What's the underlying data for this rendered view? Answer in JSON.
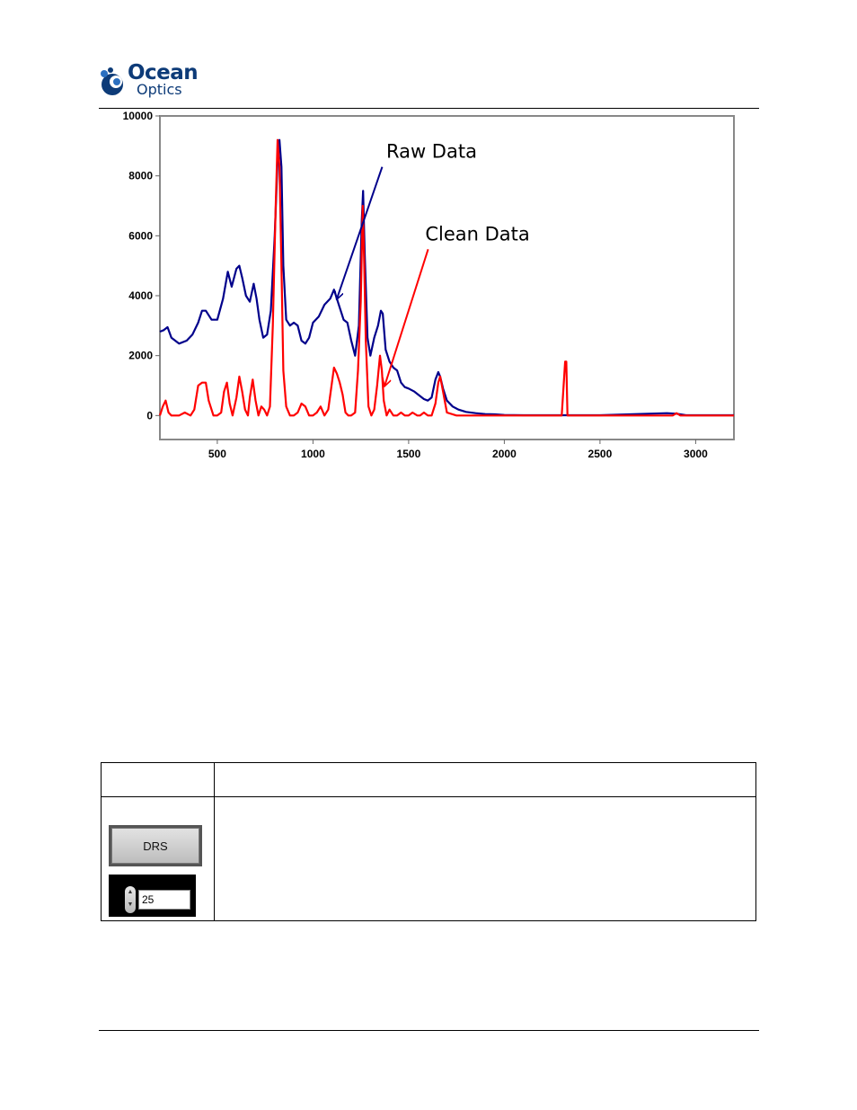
{
  "header": {
    "logo_word1": "Ocean",
    "logo_word2": "Optics",
    "brand_color": "#0d3b78",
    "logo_accent": "#2a6fc0"
  },
  "chart_data": {
    "type": "line",
    "xlim": [
      200,
      3200
    ],
    "ylim": [
      -800,
      10000
    ],
    "x_ticks": [
      "500",
      "1000",
      "1500",
      "2000",
      "2500",
      "3000"
    ],
    "y_ticks": [
      "0",
      "2000",
      "4000",
      "6000",
      "8000",
      "10000"
    ],
    "grid": false,
    "series": [
      {
        "color": "#00008b",
        "x": [
          200,
          220,
          240,
          260,
          300,
          340,
          370,
          400,
          420,
          440,
          470,
          500,
          530,
          555,
          575,
          600,
          615,
          630,
          650,
          670,
          690,
          705,
          720,
          740,
          760,
          780,
          800,
          815,
          825,
          835,
          845,
          860,
          880,
          900,
          920,
          940,
          960,
          980,
          1000,
          1030,
          1060,
          1090,
          1110,
          1125,
          1140,
          1160,
          1180,
          1200,
          1220,
          1240,
          1255,
          1262,
          1270,
          1285,
          1300,
          1320,
          1340,
          1355,
          1365,
          1380,
          1400,
          1420,
          1440,
          1460,
          1480,
          1500,
          1530,
          1560,
          1580,
          1600,
          1620,
          1640,
          1655,
          1665,
          1680,
          1700,
          1730,
          1760,
          1800,
          1850,
          1900,
          1950,
          2000,
          2100,
          2300,
          2500,
          2850,
          2900,
          2950,
          3000,
          3200
        ],
        "values": [
          2800,
          2850,
          2950,
          2600,
          2400,
          2500,
          2700,
          3100,
          3500,
          3500,
          3200,
          3200,
          3900,
          4800,
          4300,
          4900,
          5000,
          4600,
          4000,
          3800,
          4400,
          3900,
          3200,
          2600,
          2700,
          3500,
          6000,
          8500,
          9200,
          8300,
          5000,
          3200,
          3000,
          3100,
          3000,
          2500,
          2400,
          2600,
          3100,
          3300,
          3700,
          3900,
          4200,
          3900,
          3600,
          3200,
          3100,
          2500,
          2000,
          3000,
          6500,
          7500,
          5500,
          2600,
          2000,
          2600,
          3000,
          3500,
          3400,
          2200,
          1800,
          1600,
          1500,
          1100,
          950,
          900,
          800,
          650,
          550,
          500,
          600,
          1200,
          1450,
          1300,
          900,
          500,
          300,
          200,
          120,
          80,
          50,
          40,
          20,
          10,
          10,
          10,
          80,
          60,
          10,
          10,
          10
        ]
      },
      {
        "color": "#ff0000",
        "x": [
          200,
          215,
          230,
          245,
          260,
          300,
          330,
          360,
          380,
          400,
          420,
          440,
          455,
          465,
          480,
          500,
          520,
          535,
          550,
          565,
          580,
          600,
          615,
          630,
          645,
          660,
          670,
          685,
          700,
          715,
          730,
          745,
          760,
          775,
          790,
          805,
          815,
          825,
          835,
          845,
          860,
          880,
          900,
          920,
          940,
          960,
          980,
          1000,
          1020,
          1040,
          1060,
          1080,
          1095,
          1110,
          1125,
          1140,
          1155,
          1170,
          1185,
          1200,
          1220,
          1235,
          1250,
          1260,
          1268,
          1276,
          1290,
          1305,
          1320,
          1335,
          1350,
          1360,
          1370,
          1385,
          1400,
          1420,
          1440,
          1460,
          1480,
          1500,
          1520,
          1545,
          1560,
          1580,
          1600,
          1620,
          1640,
          1655,
          1665,
          1680,
          1700,
          1750,
          2000,
          2300,
          2318,
          2324,
          2330,
          2340,
          2400,
          2880,
          2900,
          2920,
          3200
        ],
        "values": [
          0,
          300,
          500,
          100,
          0,
          0,
          100,
          0,
          200,
          1000,
          1100,
          1100,
          500,
          300,
          0,
          0,
          100,
          800,
          1100,
          400,
          0,
          600,
          1300,
          800,
          200,
          0,
          600,
          1200,
          500,
          0,
          300,
          200,
          0,
          300,
          3000,
          7000,
          9200,
          8300,
          5000,
          1500,
          300,
          0,
          0,
          100,
          400,
          300,
          0,
          0,
          100,
          300,
          0,
          200,
          900,
          1600,
          1400,
          1100,
          700,
          100,
          0,
          0,
          100,
          1500,
          3800,
          7000,
          5000,
          2500,
          300,
          0,
          200,
          1000,
          2000,
          1500,
          500,
          0,
          200,
          0,
          0,
          100,
          0,
          0,
          100,
          0,
          0,
          100,
          0,
          0,
          400,
          1100,
          1300,
          800,
          100,
          0,
          0,
          0,
          1800,
          1800,
          0,
          0,
          0,
          0,
          80,
          0,
          0
        ]
      }
    ],
    "annotations": [
      {
        "text": "Raw Data",
        "color": "#00008b",
        "x": 1620,
        "y": 8600,
        "arrow_to": [
          1125,
          3900
        ]
      },
      {
        "text": "Clean Data",
        "color": "#ff0000",
        "x": 1860,
        "y": 5850,
        "arrow_to": [
          1375,
          1000
        ]
      }
    ]
  },
  "controls": {
    "button_label": "DRS",
    "stepper_value": "25"
  }
}
